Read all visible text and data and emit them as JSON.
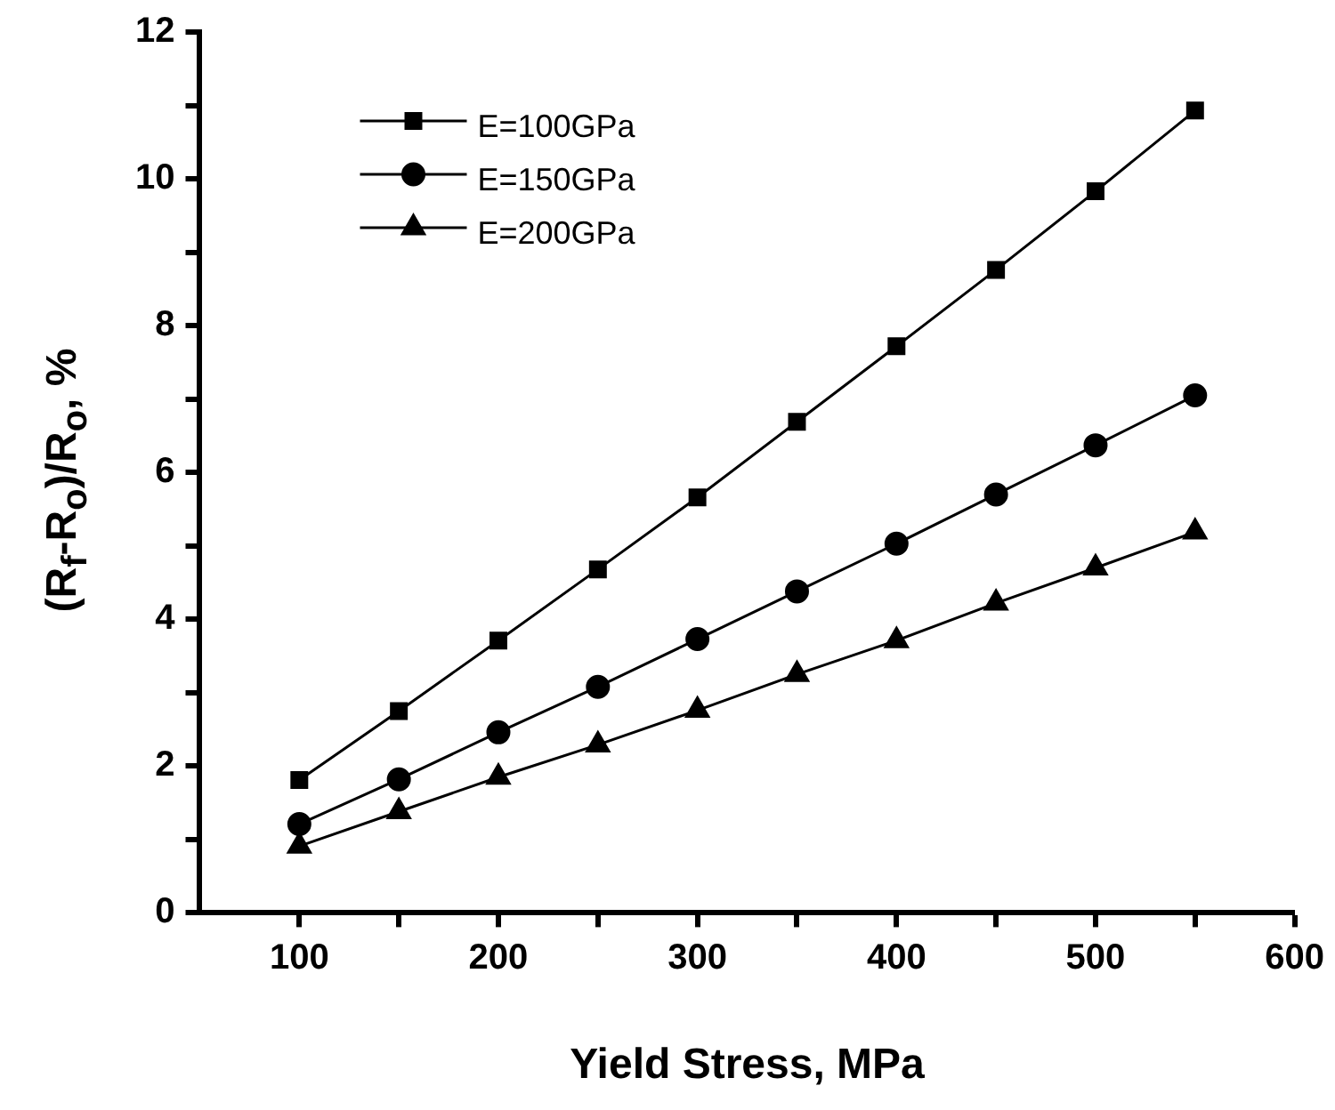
{
  "chart_data": {
    "type": "line",
    "xlabel": "Yield Stress, MPa",
    "ylabel": "(R$_{f}$-R$_{o}$)/R$_{o}$, %",
    "x": [
      100,
      150,
      200,
      250,
      300,
      350,
      400,
      450,
      500,
      550
    ],
    "series": [
      {
        "name": "E=100GPa",
        "color": "#000000",
        "marker": "square",
        "values": [
          1.81,
          2.75,
          3.71,
          4.68,
          5.66,
          6.69,
          7.72,
          8.76,
          9.83,
          10.93
        ]
      },
      {
        "name": "E=150GPa",
        "color": "#000000",
        "marker": "circle",
        "values": [
          1.21,
          1.82,
          2.46,
          3.08,
          3.73,
          4.38,
          5.03,
          5.7,
          6.37,
          7.05
        ]
      },
      {
        "name": "E=200GPa",
        "color": "#000000",
        "marker": "triangle",
        "values": [
          0.91,
          1.38,
          1.85,
          2.29,
          2.76,
          3.25,
          3.71,
          4.22,
          4.7,
          5.19
        ]
      }
    ],
    "xlim": [
      50,
      600
    ],
    "ylim": [
      0,
      12
    ],
    "xticks": [
      100,
      {
        "value": 150,
        "label": null
      },
      200,
      {
        "value": 250,
        "label": null
      },
      300,
      {
        "value": 350,
        "label": null
      },
      400,
      {
        "value": 450,
        "label": null
      },
      500,
      {
        "value": 550,
        "label": null
      },
      600
    ],
    "yticks": [
      0,
      {
        "value": 1,
        "label": null
      },
      2,
      {
        "value": 3,
        "label": null
      },
      4,
      {
        "value": 5,
        "label": null
      },
      6,
      {
        "value": 7,
        "label": null
      },
      8,
      {
        "value": 9,
        "label": null
      },
      10,
      {
        "value": 11,
        "label": null
      },
      12
    ],
    "grid": false,
    "legend": "top left",
    "line_style": "solid"
  }
}
